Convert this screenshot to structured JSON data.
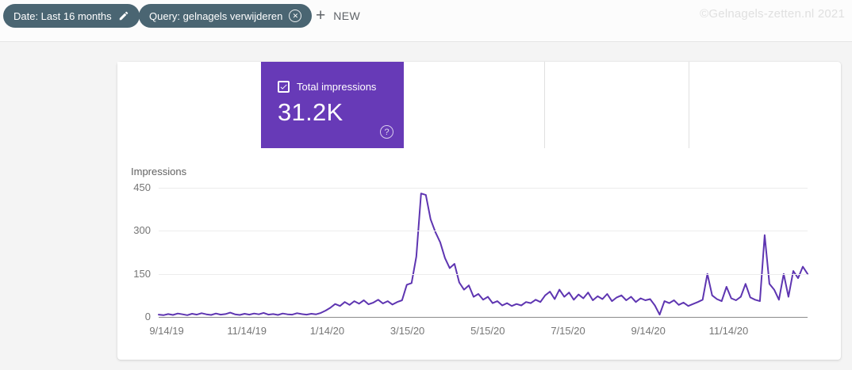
{
  "watermark": "©Gelnagels-zetten.nl 2021",
  "filters": {
    "date_chip": {
      "label": "Date: Last 16 months",
      "icon": "edit-pencil"
    },
    "query_chip": {
      "label": "Query: gelnagels verwijderen",
      "icon": "remove-circle-x"
    },
    "new_button": {
      "label": "NEW",
      "icon": "plus"
    }
  },
  "metric_card": {
    "label": "Total impressions",
    "value": "31.2K",
    "checked": true,
    "color": "#673ab7",
    "help_icon": "question-mark"
  },
  "chart_data": {
    "type": "line",
    "ylabel": "Impressions",
    "x_ticks": [
      "9/14/19",
      "11/14/19",
      "1/14/20",
      "3/15/20",
      "5/15/20",
      "7/15/20",
      "9/14/20",
      "11/14/20"
    ],
    "y_ticks": [
      0,
      150,
      300,
      450
    ],
    "ylim": [
      0,
      450
    ],
    "grid": true,
    "legend": "none",
    "series": [
      {
        "name": "Total impressions",
        "color": "#5e35b1",
        "x_range": "9/14/19 to 12/31/20, uniformly spaced samples",
        "values": [
          8,
          6,
          10,
          7,
          12,
          9,
          6,
          11,
          8,
          13,
          9,
          7,
          12,
          8,
          10,
          15,
          9,
          7,
          11,
          8,
          12,
          9,
          14,
          8,
          10,
          7,
          12,
          9,
          8,
          13,
          10,
          8,
          11,
          9,
          14,
          22,
          32,
          45,
          38,
          52,
          42,
          55,
          46,
          58,
          44,
          50,
          60,
          47,
          55,
          43,
          52,
          58,
          112,
          118,
          210,
          430,
          425,
          340,
          295,
          260,
          205,
          170,
          185,
          120,
          95,
          110,
          70,
          80,
          60,
          70,
          48,
          55,
          40,
          48,
          38,
          45,
          40,
          52,
          48,
          60,
          52,
          75,
          88,
          62,
          95,
          70,
          85,
          60,
          78,
          65,
          85,
          58,
          72,
          62,
          80,
          55,
          68,
          75,
          58,
          70,
          52,
          65,
          58,
          62,
          40,
          8,
          55,
          48,
          58,
          42,
          50,
          38,
          45,
          52,
          60,
          150,
          75,
          62,
          55,
          105,
          65,
          58,
          70,
          115,
          68,
          60,
          55,
          285,
          115,
          95,
          60,
          150,
          70,
          160,
          135,
          175,
          150
        ]
      }
    ]
  }
}
